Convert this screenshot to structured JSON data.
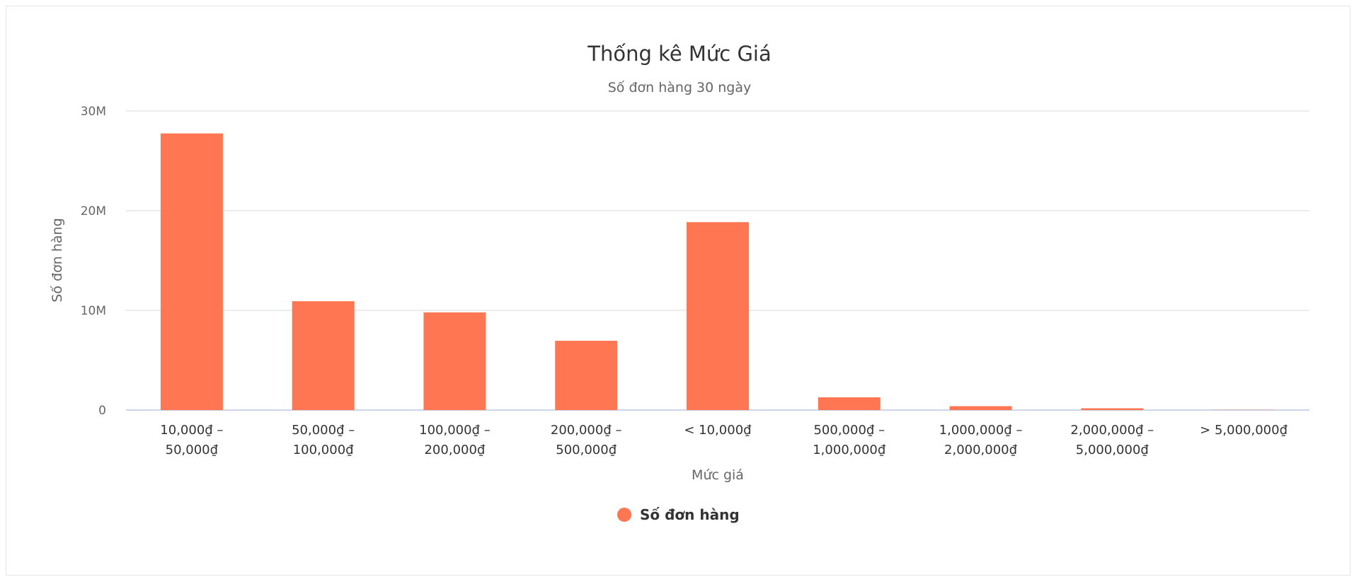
{
  "chart_data": {
    "type": "bar",
    "title": "Thống kê Mức Giá",
    "subtitle": "Số đơn hàng 30 ngày",
    "xlabel": "Mức giá",
    "ylabel": "Số đơn hàng",
    "ylim": [
      0,
      30000000
    ],
    "yticks": [
      {
        "value": 0,
        "label": "0"
      },
      {
        "value": 10000000,
        "label": "10M"
      },
      {
        "value": 20000000,
        "label": "20M"
      },
      {
        "value": 30000000,
        "label": "30M"
      }
    ],
    "grid": true,
    "legend_position": "bottom",
    "categories": [
      [
        "10,000₫ –",
        "50,000₫"
      ],
      [
        "50,000₫ –",
        "100,000₫"
      ],
      [
        "100,000₫ –",
        "200,000₫"
      ],
      [
        "200,000₫ –",
        "500,000₫"
      ],
      [
        "< 10,000₫"
      ],
      [
        "500,000₫ –",
        "1,000,000₫"
      ],
      [
        "1,000,000₫ –",
        "2,000,000₫"
      ],
      [
        "2,000,000₫ –",
        "5,000,000₫"
      ],
      [
        "> 5,000,000₫"
      ]
    ],
    "series": [
      {
        "name": "Số đơn hàng",
        "color": "#ff7652",
        "values": [
          27750000,
          10920000,
          9800000,
          6950000,
          18850000,
          1280000,
          390000,
          180000,
          20000
        ]
      }
    ]
  }
}
